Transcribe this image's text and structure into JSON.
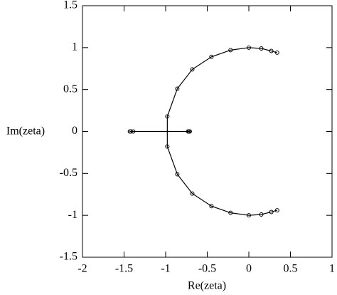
{
  "chart_data": {
    "type": "line",
    "xlabel": "Re(zeta)",
    "ylabel": "Im(zeta)",
    "xlim": [
      -2,
      1
    ],
    "ylim": [
      -1.5,
      1.5
    ],
    "xticks": [
      -2,
      -1.5,
      -1,
      -0.5,
      0,
      0.5,
      1
    ],
    "yticks": [
      -1.5,
      -1,
      -0.5,
      0,
      0.5,
      1,
      1.5
    ],
    "color": "#000000",
    "series": [
      {
        "x": [
          0.34,
          0.27,
          0.15,
          0,
          -0.22,
          -0.45,
          -0.68,
          -0.86,
          -0.98,
          -0.98,
          -0.86,
          -0.68,
          -0.45,
          -0.22,
          0,
          0.15,
          0.27,
          0.34
        ],
        "values": [
          0.94,
          0.96,
          0.99,
          1,
          0.97,
          0.89,
          0.74,
          0.51,
          0.18,
          -0.18,
          -0.51,
          -0.74,
          -0.89,
          -0.97,
          -1,
          -0.99,
          -0.96,
          -0.94
        ]
      },
      {
        "x": [
          -1.43,
          -1.42,
          -1.39,
          -0.73,
          -0.72,
          -0.71
        ],
        "values": [
          0,
          0,
          0,
          0,
          0,
          0
        ]
      }
    ]
  }
}
